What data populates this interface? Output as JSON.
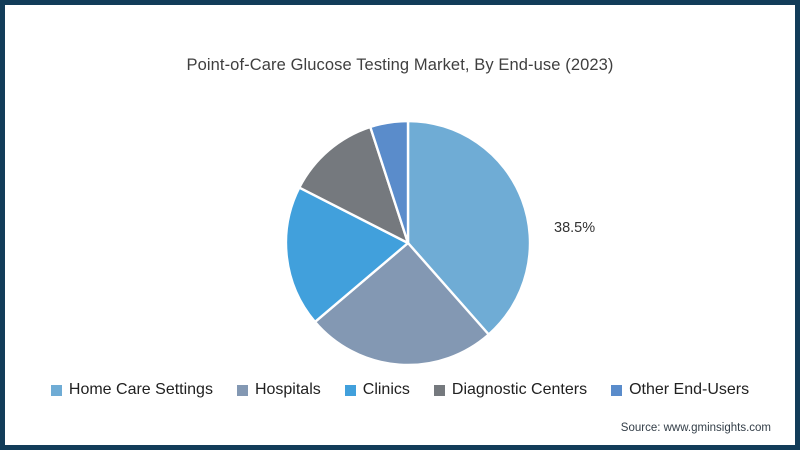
{
  "chart_data": {
    "type": "pie",
    "title": "Point-of-Care Glucose Testing Market, By End-use (2023)",
    "labels": [
      "Home Care Settings",
      "Hospitals",
      "Clinics",
      "Diagnostic Centers",
      "Other End-Users"
    ],
    "values": [
      38.5,
      25.3,
      18.7,
      12.5,
      5.0
    ],
    "colors": [
      "#6FACD5",
      "#8398B3",
      "#41A0DC",
      "#75797E",
      "#5A8CCB"
    ],
    "start_angle_deg": 0,
    "direction": "clockwise",
    "slice_stroke_color": "#ffffff",
    "legend_position": "bottom",
    "annotation": {
      "text": "38.5%",
      "slice": "Home Care Settings"
    }
  },
  "frame": {
    "border_color": "#123C59",
    "background_color": "#ffffff"
  },
  "source": "Source: www.gminsights.com"
}
